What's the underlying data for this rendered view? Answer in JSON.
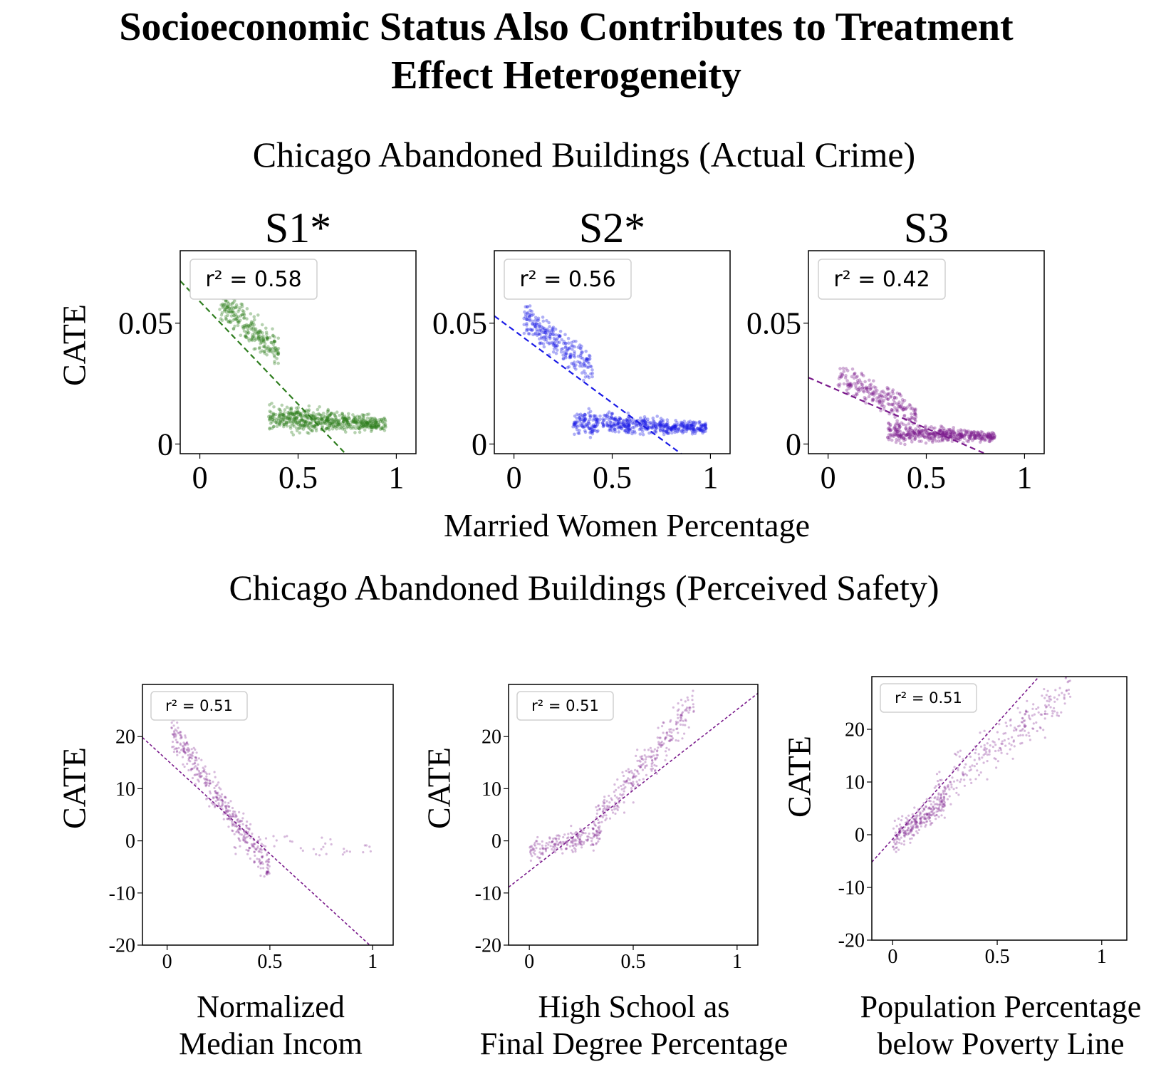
{
  "title_line1": "Socioeconomic Status Also Contributes to Treatment",
  "title_line2": "Effect Heterogeneity",
  "sections": {
    "actual_crime": "Chicago Abandoned Buildings (Actual Crime)",
    "perceived_safety": "Chicago Abandoned Buildings (Perceived Safety)"
  },
  "top_row": {
    "xlabel": "Married Women Percentage",
    "ylabel": "CATE"
  },
  "bottom_row": {
    "ylabel": "CATE",
    "xlabels": [
      [
        "Normalized",
        "Median Incom"
      ],
      [
        "High School as",
        "Final Degree Percentage"
      ],
      [
        "Population Percentage",
        "below Poverty Line"
      ]
    ]
  },
  "colors": {
    "green": "#2e7d1e",
    "blue": "#1a1ae6",
    "purple": "#7a1a8c"
  },
  "chart_data": [
    {
      "type": "scatter",
      "title": "S1*",
      "legend": "r² = 0.58",
      "color": "#2e7d1e",
      "xlim": [
        -0.1,
        1.1
      ],
      "ylim": [
        -0.004,
        0.08
      ],
      "xticks": [
        0,
        0.5,
        1
      ],
      "xticklabels": [
        "0",
        "0.5",
        "1"
      ],
      "yticks": [
        0,
        0.05
      ],
      "yticklabels": [
        "0",
        "0.05"
      ],
      "xlabel": "Married Women Percentage",
      "ylabel": "CATE",
      "fit": {
        "slope": -0.085,
        "intercept": 0.059,
        "dashed": true
      },
      "clusters": [
        {
          "x": [
            0.1,
            0.4
          ],
          "y_at_x0": 0.066,
          "y_slope": -0.07,
          "y_spread": 0.01,
          "n": 260
        },
        {
          "x": [
            0.35,
            0.95
          ],
          "y": [
            0.004,
            0.018
          ],
          "n": 600
        }
      ]
    },
    {
      "type": "scatter",
      "title": "S2*",
      "legend": "r² = 0.56",
      "color": "#1a1ae6",
      "xlim": [
        -0.1,
        1.1
      ],
      "ylim": [
        -0.004,
        0.08
      ],
      "xticks": [
        0,
        0.5,
        1
      ],
      "xticklabels": [
        "0",
        "0.5",
        "1"
      ],
      "yticks": [
        0,
        0.05
      ],
      "yticklabels": [
        "0",
        "0.05"
      ],
      "xlabel": "Married Women Percentage",
      "ylabel": "CATE",
      "fit": {
        "slope": -0.06,
        "intercept": 0.047,
        "dashed": true
      },
      "clusters": [
        {
          "x": [
            0.05,
            0.4
          ],
          "y_at_x0": 0.055,
          "y_slope": -0.06,
          "y_spread": 0.01,
          "n": 250
        },
        {
          "x": [
            0.3,
            0.98
          ],
          "y": [
            0.003,
            0.015
          ],
          "n": 550
        }
      ]
    },
    {
      "type": "scatter",
      "title": "S3",
      "legend": "r² = 0.42",
      "color": "#7a1a8c",
      "xlim": [
        -0.1,
        1.1
      ],
      "ylim": [
        -0.004,
        0.08
      ],
      "xticks": [
        0,
        0.5,
        1
      ],
      "xticklabels": [
        "0",
        "0.5",
        "1"
      ],
      "yticks": [
        0,
        0.05
      ],
      "yticklabels": [
        "0",
        "0.05"
      ],
      "xlabel": "Married Women Percentage",
      "ylabel": "CATE",
      "fit": {
        "slope": -0.035,
        "intercept": 0.024,
        "dashed": true
      },
      "clusters": [
        {
          "x": [
            0.05,
            0.45
          ],
          "y_at_x0": 0.03,
          "y_slope": -0.04,
          "y_spread": 0.008,
          "n": 220
        },
        {
          "x": [
            0.3,
            0.85
          ],
          "y": [
            0.0,
            0.01
          ],
          "n": 450
        }
      ]
    },
    {
      "type": "scatter",
      "legend": "r² = 0.51",
      "color": "#7a1a8c",
      "xlim": [
        -0.12,
        1.1
      ],
      "ylim": [
        -20,
        30
      ],
      "xticks": [
        0,
        0.5,
        1
      ],
      "xticklabels": [
        "0",
        "0.5",
        "1"
      ],
      "yticks": [
        -20,
        -10,
        0,
        10,
        20
      ],
      "yticklabels": [
        "-20",
        "-10",
        "0",
        "10",
        "20"
      ],
      "xlabel": "Normalized Median Incom",
      "ylabel": "CATE",
      "fit": {
        "slope": -36,
        "intercept": 15.5,
        "dashed": true
      },
      "clusters": [
        {
          "x": [
            0.02,
            0.5
          ],
          "y_at_x0": 22,
          "y_slope": -55,
          "y_spread": 4.5,
          "n": 420
        },
        {
          "x": [
            0.3,
            1.0
          ],
          "y": [
            -4,
            3
          ],
          "n": 40
        }
      ]
    },
    {
      "type": "scatter",
      "legend": "r² = 0.51",
      "color": "#7a1a8c",
      "xlim": [
        -0.1,
        1.1
      ],
      "ylim": [
        -20,
        30
      ],
      "xticks": [
        0,
        0.5,
        1
      ],
      "xticklabels": [
        "0",
        "0.5",
        "1"
      ],
      "yticks": [
        -20,
        -10,
        0,
        10,
        20
      ],
      "yticklabels": [
        "-20",
        "-10",
        "0",
        "10",
        "20"
      ],
      "xlabel": "High School as Final Degree Percentage",
      "ylabel": "CATE",
      "fit": {
        "slope": 31,
        "intercept": -5.8,
        "dashed": true
      },
      "clusters": [
        {
          "x": [
            0.0,
            0.35
          ],
          "y_at_x0": -2,
          "y_slope": 10,
          "y_spread": 3,
          "n": 200
        },
        {
          "x": [
            0.3,
            0.8
          ],
          "y_at_x0": -12,
          "y_slope": 48,
          "y_spread": 5.5,
          "n": 300
        }
      ]
    },
    {
      "type": "scatter",
      "legend": "r² = 0.51",
      "color": "#7a1a8c",
      "xlim": [
        -0.1,
        1.12
      ],
      "ylim": [
        -20,
        30
      ],
      "xticks": [
        0,
        0.5,
        1
      ],
      "xticklabels": [
        "0",
        "0.5",
        "1"
      ],
      "yticks": [
        -20,
        -10,
        0,
        10,
        20
      ],
      "yticklabels": [
        "-20",
        "-10",
        "0",
        "10",
        "20"
      ],
      "xlabel": "Population Percentage below Poverty Line",
      "ylabel": "CATE",
      "fit": {
        "slope": 44,
        "intercept": -0.8,
        "dashed": true
      },
      "clusters": [
        {
          "x": [
            0.0,
            0.25
          ],
          "y_at_x0": -1,
          "y_slope": 30,
          "y_spread": 4,
          "n": 280
        },
        {
          "x": [
            0.2,
            0.85
          ],
          "y_at_x0": 2,
          "y_slope": 30,
          "y_spread": 6,
          "n": 260
        }
      ]
    }
  ]
}
